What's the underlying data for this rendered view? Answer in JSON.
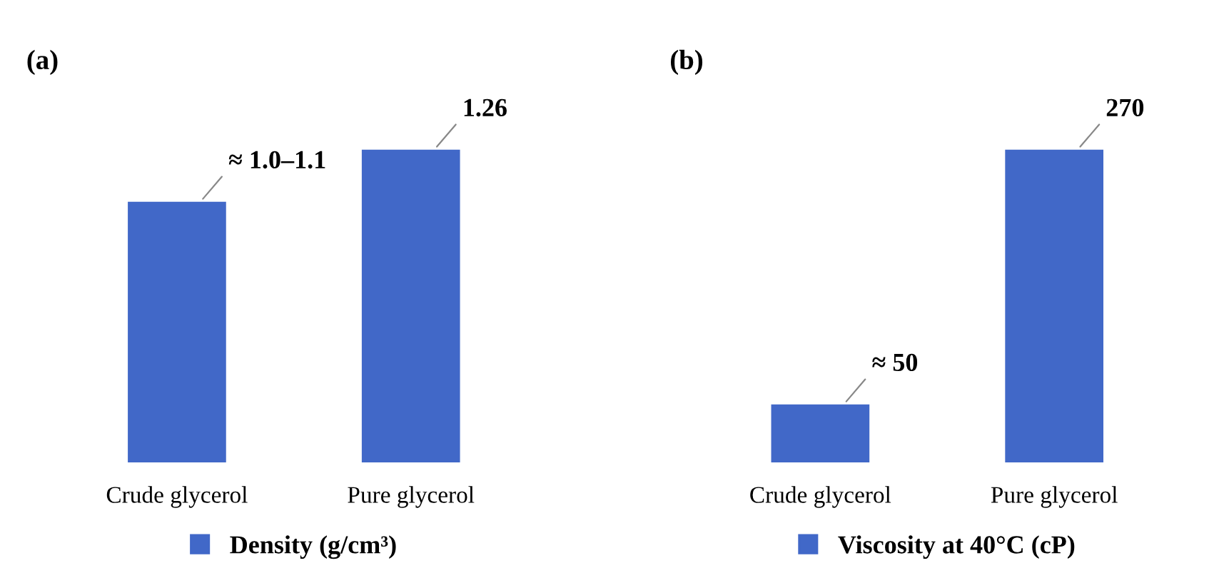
{
  "chart_data": [
    {
      "type": "bar",
      "title": "(a)",
      "categories": [
        "Crude glycerol",
        "Pure glycerol"
      ],
      "series": [
        {
          "name": "Density (g/cm³)",
          "color": "#4168c8",
          "values": [
            1.05,
            1.26
          ],
          "value_labels": [
            "≈ 1.0–1.1",
            "1.26"
          ]
        }
      ],
      "legend": "bottom",
      "grid": false
    },
    {
      "type": "bar",
      "title": "(b)",
      "categories": [
        "Crude glycerol",
        "Pure glycerol"
      ],
      "series": [
        {
          "name": "Viscosity at 40°C (cP)",
          "color": "#4168c8",
          "values": [
            50,
            270
          ],
          "value_labels": [
            "≈ 50",
            "270"
          ]
        }
      ],
      "legend": "bottom",
      "grid": false
    }
  ]
}
